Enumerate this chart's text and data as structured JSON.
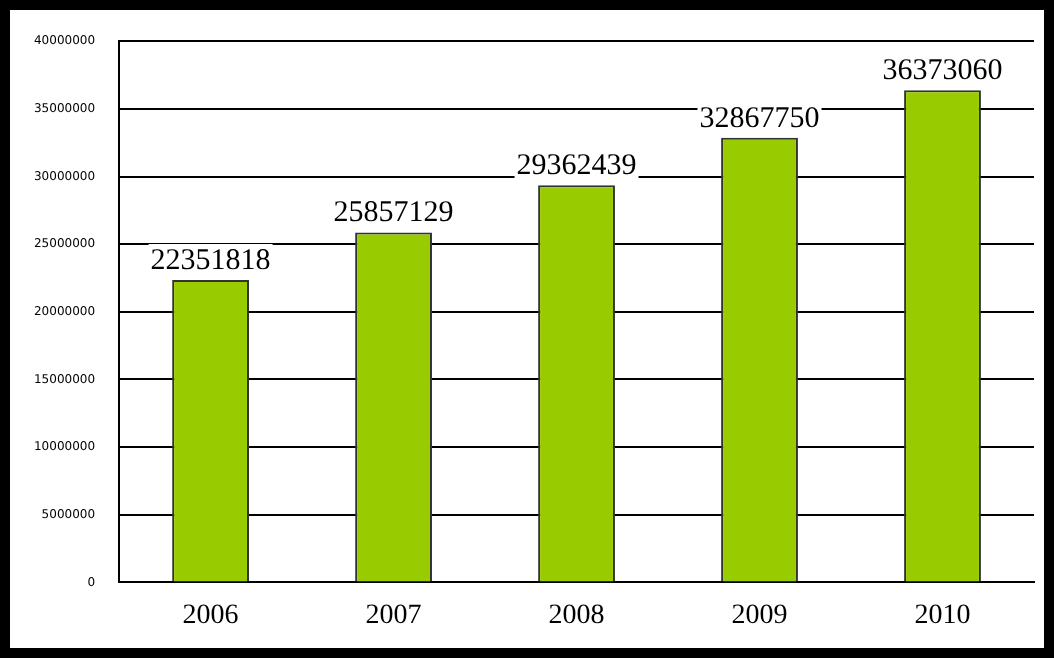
{
  "chart_data": {
    "type": "bar",
    "categories": [
      "2006",
      "2007",
      "2008",
      "2009",
      "2010"
    ],
    "values": [
      22351818,
      25857129,
      29362439,
      32867750,
      36373060
    ],
    "color": "#99cc00",
    "ylim": [
      0,
      40000000
    ],
    "yticks": [
      0,
      5000000,
      10000000,
      15000000,
      20000000,
      25000000,
      30000000,
      35000000,
      40000000
    ],
    "grid": "y",
    "data_labels": true,
    "legend": false
  }
}
